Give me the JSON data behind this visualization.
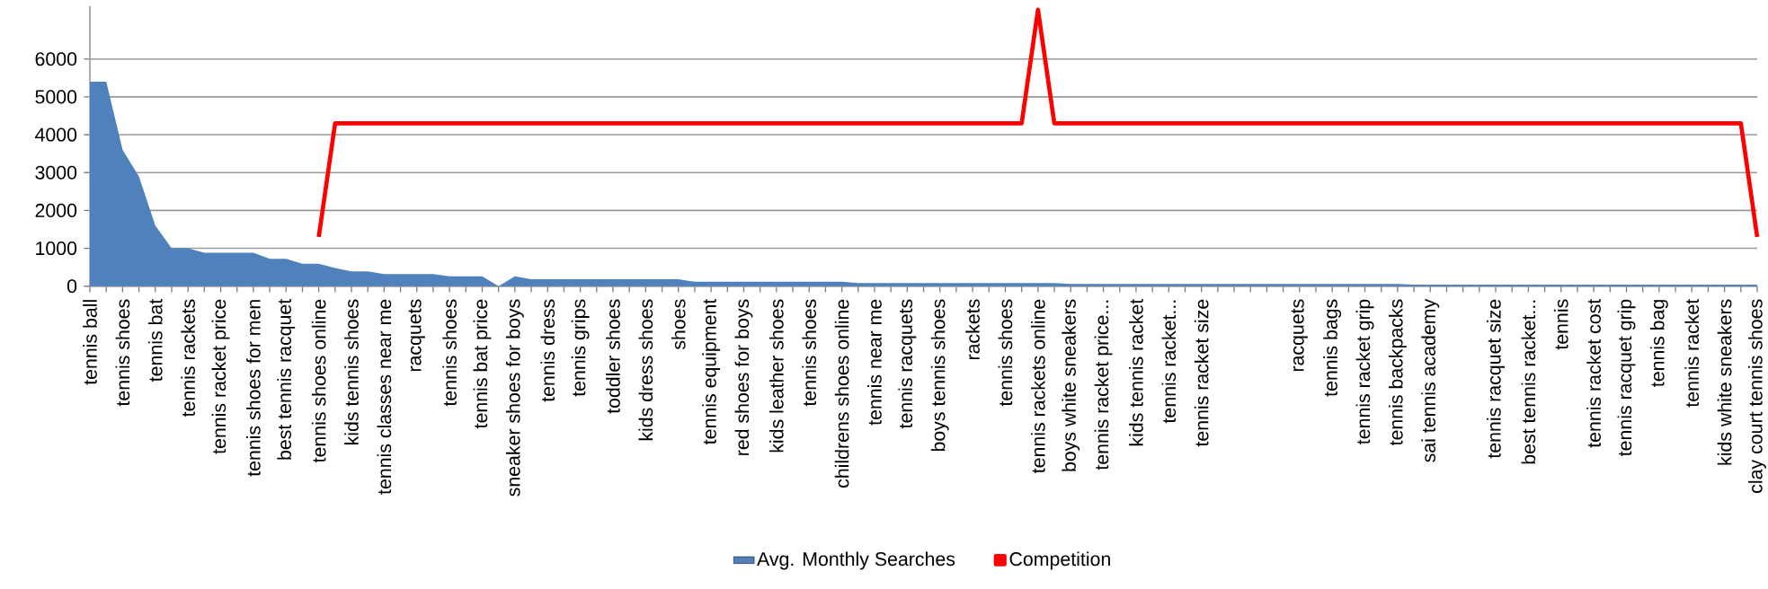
{
  "chart_data": {
    "type": "area",
    "categories": [
      "tennis ball",
      null,
      "tennis shoes",
      null,
      "tennis bat",
      null,
      "tennis rackets",
      null,
      "tennis racket price",
      null,
      "tennis shoes for men",
      null,
      "best tennis racquet",
      null,
      "tennis shoes online",
      null,
      "kids tennis shoes",
      null,
      "tennis classes near me",
      null,
      "racquets",
      null,
      "tennis shoes",
      null,
      "tennis bat price",
      null,
      "sneaker shoes for boys",
      null,
      "tennis dress",
      null,
      "tennis grips",
      null,
      "toddler shoes",
      null,
      "kids dress shoes",
      null,
      "shoes",
      null,
      "tennis equipment",
      null,
      "red shoes for boys",
      null,
      "kids leather shoes",
      null,
      "tennis shoes",
      null,
      "childrens shoes online",
      null,
      "tennis near me",
      null,
      "tennis racquets",
      null,
      "boys tennis shoes",
      null,
      "rackets",
      null,
      "tennis shoes",
      null,
      "tennis rackets online",
      null,
      "boys white sneakers",
      null,
      "tennis racket price...",
      null,
      "kids tennis racket",
      null,
      "tennis racket...",
      null,
      "tennis racket size",
      null,
      null,
      null,
      null,
      null,
      "racquets",
      null,
      "tennis bags",
      null,
      "tennis racket grip",
      null,
      "tennis backpacks",
      null,
      "sai tennis academy",
      null,
      null,
      null,
      "tennis racquet size",
      null,
      "best tennis racket...",
      null,
      "tennis",
      null,
      "tennis racket cost",
      null,
      "tennis racquet grip",
      null,
      "tennis bag",
      null,
      "tennis racket",
      null,
      "kids white sneakers",
      null,
      "clay court tennis shoes"
    ],
    "series": [
      {
        "name": "Avg. Monthly Searches",
        "color": "#4f81bd",
        "values": [
          5400,
          5400,
          3600,
          2900,
          1600,
          1000,
          1000,
          880,
          880,
          880,
          880,
          720,
          720,
          590,
          590,
          480,
          390,
          390,
          320,
          320,
          320,
          320,
          260,
          260,
          260,
          0,
          260,
          180,
          180,
          180,
          180,
          180,
          180,
          180,
          180,
          180,
          180,
          120,
          120,
          120,
          120,
          120,
          120,
          120,
          120,
          120,
          120,
          80,
          80,
          80,
          80,
          80,
          80,
          80,
          80,
          80,
          80,
          80,
          80,
          80,
          60,
          60,
          60,
          60,
          60,
          60,
          60,
          60,
          60,
          60,
          60,
          60,
          60,
          60,
          60,
          60,
          60,
          60,
          60,
          60,
          60,
          40,
          40,
          40,
          40,
          40,
          40,
          40,
          40,
          40,
          40,
          40,
          40,
          40,
          40,
          40,
          40,
          40,
          40,
          40,
          40,
          40,
          40
        ]
      },
      {
        "name": "Competition",
        "type": "line",
        "color": "#ff0000",
        "values": [
          null,
          null,
          null,
          null,
          null,
          null,
          null,
          null,
          null,
          null,
          null,
          null,
          null,
          null,
          1300,
          4300,
          4300,
          4300,
          4300,
          4300,
          4300,
          4300,
          4300,
          4300,
          4300,
          4300,
          4300,
          4300,
          4300,
          4300,
          4300,
          4300,
          4300,
          4300,
          4300,
          4300,
          4300,
          4300,
          4300,
          4300,
          4300,
          4300,
          4300,
          4300,
          4300,
          4300,
          4300,
          4300,
          4300,
          4300,
          4300,
          4300,
          4300,
          4300,
          4300,
          4300,
          4300,
          4300,
          7300,
          4300,
          4300,
          4300,
          4300,
          4300,
          4300,
          4300,
          4300,
          4300,
          4300,
          4300,
          4300,
          4300,
          4300,
          4300,
          4300,
          4300,
          4300,
          4300,
          4300,
          4300,
          4300,
          4300,
          4300,
          4300,
          4300,
          4300,
          4300,
          4300,
          4300,
          4300,
          4300,
          4300,
          4300,
          4300,
          4300,
          4300,
          4300,
          4300,
          4300,
          4300,
          4300,
          4300,
          1300
        ]
      }
    ],
    "ylim": [
      0,
      7400
    ],
    "yticks": [
      0,
      1000,
      2000,
      3000,
      4000,
      5000,
      6000
    ],
    "grid": "y",
    "legend": "bottom"
  }
}
